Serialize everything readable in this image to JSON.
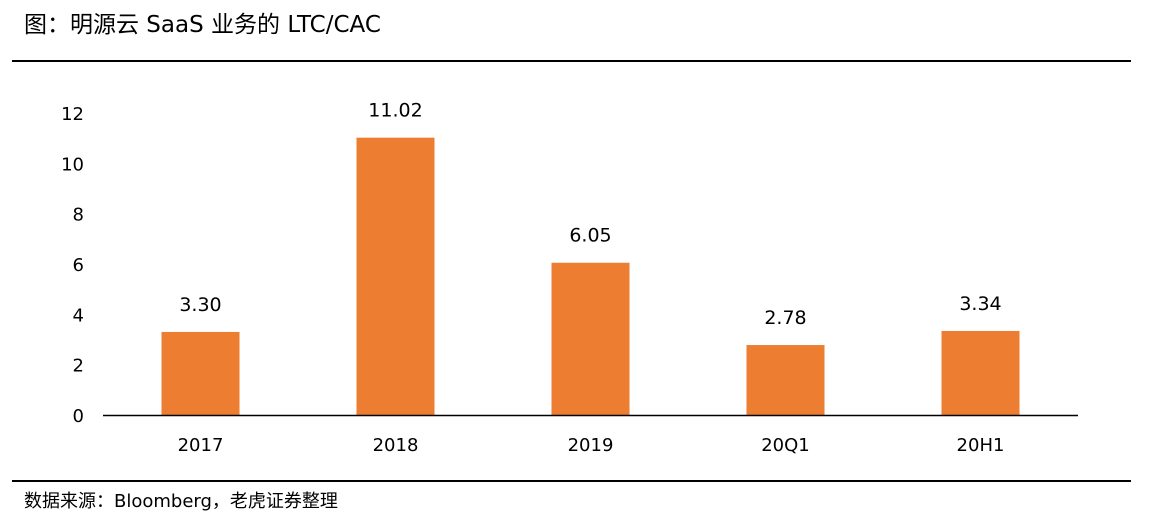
{
  "figure": {
    "title": "图：明源云 SaaS 业务的 LTC/CAC",
    "source": "数据来源：Bloomberg，老虎证券整理"
  },
  "chart_data": {
    "type": "bar",
    "title": "",
    "categories": [
      "2017",
      "2018",
      "2019",
      "20Q1",
      "20H1"
    ],
    "series": [
      {
        "values": [
          3.3,
          11.02,
          6.05,
          2.78,
          3.34
        ]
      }
    ],
    "data_labels": [
      "3.30",
      "11.02",
      "6.05",
      "2.78",
      "3.34"
    ],
    "ylim": [
      0,
      12
    ],
    "yticks": [
      0,
      2,
      4,
      6,
      8,
      10,
      12
    ],
    "xlabel": "",
    "ylabel": "",
    "grid": false,
    "legend": "none",
    "bar_color": "#ED7D31"
  }
}
